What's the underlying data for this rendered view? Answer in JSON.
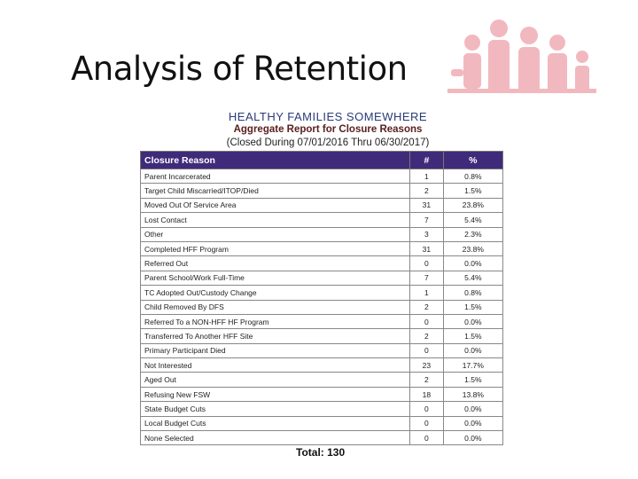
{
  "title": "Analysis of Retention",
  "report": {
    "title": "HEALTHY FAMILIES SOMEWHERE",
    "subtitle": "Aggregate Report for Closure Reasons",
    "range": "(Closed During 07/01/2016 Thru 06/30/2017)"
  },
  "table": {
    "header": [
      "Closure Reason",
      "#",
      "%"
    ],
    "rows": [
      [
        "Parent Incarcerated",
        "1",
        "0.8%"
      ],
      [
        "Target Child Miscarried/ITOP/Died",
        "2",
        "1.5%"
      ],
      [
        "Moved Out Of Service Area",
        "31",
        "23.8%"
      ],
      [
        "Lost Contact",
        "7",
        "5.4%"
      ],
      [
        "Other",
        "3",
        "2.3%"
      ],
      [
        "Completed HFF Program",
        "31",
        "23.8%"
      ],
      [
        "Referred Out",
        "0",
        "0.0%"
      ],
      [
        "Parent School/Work Full-Time",
        "7",
        "5.4%"
      ],
      [
        "TC Adopted Out/Custody Change",
        "1",
        "0.8%"
      ],
      [
        "Child Removed By DFS",
        "2",
        "1.5%"
      ],
      [
        "Referred To a NON-HFF HF Program",
        "0",
        "0.0%"
      ],
      [
        "Transferred To Another HFF Site",
        "2",
        "1.5%"
      ],
      [
        "Primary Participant Died",
        "0",
        "0.0%"
      ],
      [
        "Not Interested",
        "23",
        "17.7%"
      ],
      [
        "Aged Out",
        "2",
        "1.5%"
      ],
      [
        "Refusing New FSW",
        "18",
        "13.8%"
      ],
      [
        "State Budget Cuts",
        "0",
        "0.0%"
      ],
      [
        "Local Budget Cuts",
        "0",
        "0.0%"
      ],
      [
        "None Selected",
        "0",
        "0.0%"
      ]
    ],
    "total": "Total: 130"
  }
}
